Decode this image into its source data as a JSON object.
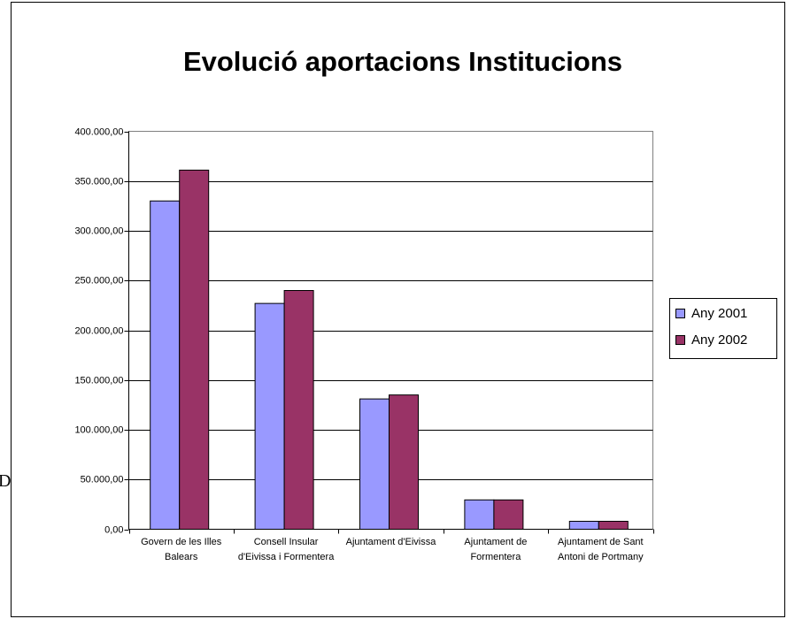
{
  "side_text": "D",
  "chart_data": {
    "type": "bar",
    "title": "Evolució aportacions Institucions",
    "categories": [
      "Govern de les Illes Balears",
      "Consell Insular d'Eivissa i Formentera",
      "Ajuntament d'Eivissa",
      "Ajuntament de Formentera",
      "Ajuntament de Sant Antoni de Portmany"
    ],
    "series": [
      {
        "name": "Any 2001",
        "color": "#9999ff",
        "values": [
          330000,
          227000,
          131000,
          29500,
          8000
        ]
      },
      {
        "name": "Any 2002",
        "color": "#993366",
        "values": [
          361000,
          240000,
          135000,
          29500,
          8000
        ]
      }
    ],
    "ylim": [
      0,
      400000
    ],
    "yticks": [
      {
        "value": 0,
        "label": "0,00"
      },
      {
        "value": 50000,
        "label": "50.000,00"
      },
      {
        "value": 100000,
        "label": "100.000,00"
      },
      {
        "value": 150000,
        "label": "150.000,00"
      },
      {
        "value": 200000,
        "label": "200.000,00"
      },
      {
        "value": 250000,
        "label": "250.000,00"
      },
      {
        "value": 300000,
        "label": "300.000,00"
      },
      {
        "value": 350000,
        "label": "350.000,00"
      },
      {
        "value": 400000,
        "label": "400.000,00"
      }
    ],
    "grid": true,
    "legend": "right"
  }
}
